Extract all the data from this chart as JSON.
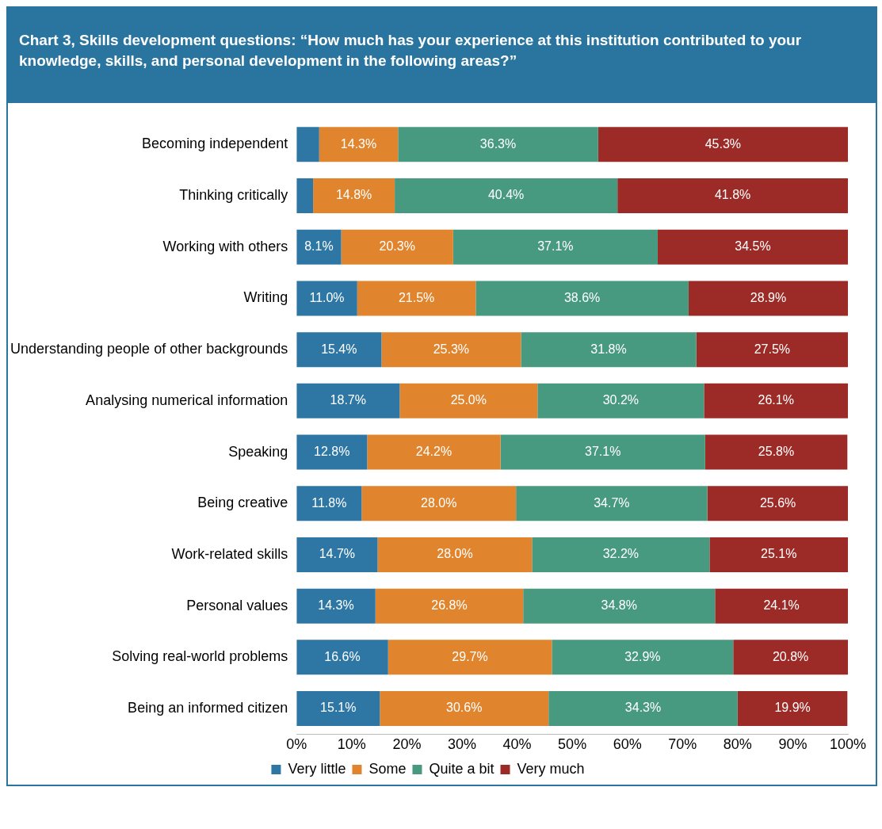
{
  "chart_data": {
    "type": "bar",
    "orientation": "horizontal",
    "stacked": true,
    "title": "Chart 3, Skills development questions: “How much has your experience at this institution contributed to your knowledge, skills, and personal development in the following areas?”",
    "categories": [
      "Becoming independent",
      "Thinking critically",
      "Working with others",
      "Writing",
      "Understanding people of other backgrounds",
      "Analysing numerical information",
      "Speaking",
      "Being creative",
      "Work-related skills",
      "Personal values",
      "Solving real-world problems",
      "Being an informed citizen"
    ],
    "series": [
      {
        "name": "Very little",
        "color": "#2e77a4",
        "values": [
          4.1,
          3.0,
          8.1,
          11.0,
          15.4,
          18.7,
          12.8,
          11.8,
          14.7,
          14.3,
          16.6,
          15.1
        ],
        "value_labels": [
          null,
          null,
          "8.1%",
          "11.0%",
          "15.4%",
          "18.7%",
          "12.8%",
          "11.8%",
          "14.7%",
          "14.3%",
          "16.6%",
          "15.1%"
        ]
      },
      {
        "name": "Some",
        "color": "#e0852e",
        "values": [
          14.3,
          14.8,
          20.3,
          21.5,
          25.3,
          25.0,
          24.2,
          28.0,
          28.0,
          26.8,
          29.7,
          30.6
        ],
        "value_labels": [
          "14.3%",
          "14.8%",
          "20.3%",
          "21.5%",
          "25.3%",
          "25.0%",
          "24.2%",
          "28.0%",
          "28.0%",
          "26.8%",
          "29.7%",
          "30.6%"
        ]
      },
      {
        "name": "Quite a bit",
        "color": "#479a80",
        "values": [
          36.3,
          40.4,
          37.1,
          38.6,
          31.8,
          30.2,
          37.1,
          34.7,
          32.2,
          34.8,
          32.9,
          34.3
        ],
        "value_labels": [
          "36.3%",
          "40.4%",
          "37.1%",
          "38.6%",
          "31.8%",
          "30.2%",
          "37.1%",
          "34.7%",
          "32.2%",
          "34.8%",
          "32.9%",
          "34.3%"
        ]
      },
      {
        "name": "Very much",
        "color": "#9c2b27",
        "values": [
          45.3,
          41.8,
          34.5,
          28.9,
          27.5,
          26.1,
          25.8,
          25.6,
          25.1,
          24.1,
          20.8,
          19.9
        ],
        "value_labels": [
          "45.3%",
          "41.8%",
          "34.5%",
          "28.9%",
          "27.5%",
          "26.1%",
          "25.8%",
          "25.6%",
          "25.1%",
          "24.1%",
          "20.8%",
          "19.9%"
        ]
      }
    ],
    "xlim": [
      0,
      100
    ],
    "xticks": [
      {
        "value": 0,
        "label": "0%"
      },
      {
        "value": 10,
        "label": "10%"
      },
      {
        "value": 20,
        "label": "20%"
      },
      {
        "value": 30,
        "label": "30%"
      },
      {
        "value": 40,
        "label": "40%"
      },
      {
        "value": 50,
        "label": "50%"
      },
      {
        "value": 60,
        "label": "60%"
      },
      {
        "value": 70,
        "label": "70%"
      },
      {
        "value": 80,
        "label": "80%"
      },
      {
        "value": 90,
        "label": "90%"
      },
      {
        "value": 100,
        "label": "100%"
      }
    ],
    "legend": "bottom"
  }
}
